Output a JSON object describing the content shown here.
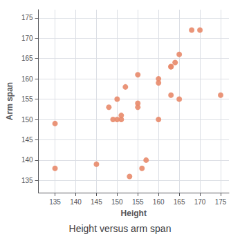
{
  "chart_data": {
    "type": "scatter",
    "title": "Height versus arm span",
    "xlabel": "Height",
    "ylabel": "Arm span",
    "x": [
      135,
      135,
      145,
      148,
      149,
      150,
      150,
      151,
      151,
      152,
      153,
      155,
      155,
      155,
      156,
      157,
      160,
      160,
      160,
      163,
      163,
      163,
      164,
      165,
      165,
      168,
      170,
      175
    ],
    "y": [
      138,
      149,
      139,
      153,
      150,
      150,
      155,
      150,
      151,
      158,
      136,
      153,
      154,
      161,
      138,
      140,
      150,
      159,
      160,
      163,
      163,
      156,
      164,
      155,
      166,
      172,
      172,
      156
    ],
    "color": "#E8896A",
    "xlim": [
      131,
      177
    ],
    "ylim": [
      132,
      177
    ],
    "xticks": [
      135,
      140,
      145,
      150,
      155,
      160,
      165,
      170,
      175
    ],
    "yticks": [
      135,
      140,
      145,
      150,
      155,
      160,
      165,
      170,
      175
    ],
    "grid": true
  }
}
